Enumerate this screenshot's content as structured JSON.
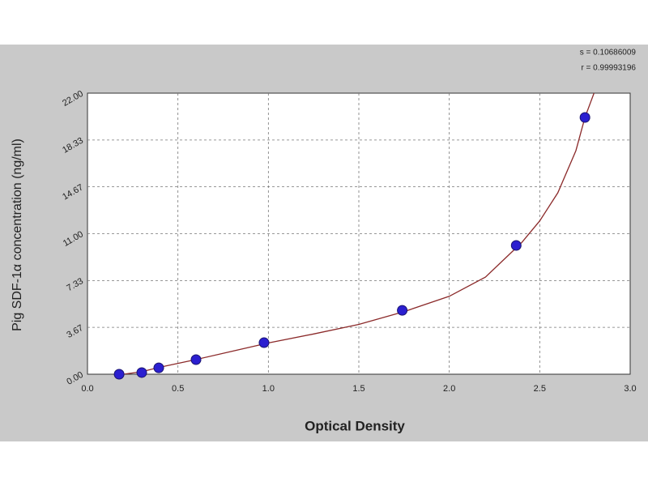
{
  "chart_data": {
    "type": "scatter",
    "x_label": "Optical Density",
    "y_label": "Pig SDF-1α concentration (ng/ml)",
    "annotations": [
      "s = 0.10686009",
      "r = 0.99993196"
    ],
    "xlim": [
      0,
      3
    ],
    "ylim": [
      0,
      22
    ],
    "xticks": [
      {
        "value": 0,
        "label": "0.0"
      },
      0.5,
      {
        "value": 1,
        "label": "1.0"
      },
      1.5,
      {
        "value": 2,
        "label": "2.0"
      },
      2.5,
      {
        "value": 3,
        "label": "3.0"
      }
    ],
    "yticks": [
      {
        "value": 0,
        "label": "0.00"
      },
      3.67,
      7.33,
      {
        "value": 11,
        "label": "11.00"
      },
      14.67,
      18.33,
      {
        "value": 22,
        "label": "22.00"
      }
    ],
    "grid": true,
    "series": [
      {
        "color": "#2b1fd0",
        "marker": "circle",
        "x": [
          0.175,
          0.3,
          0.394,
          0.6,
          0.976,
          1.74,
          2.37,
          2.75
        ],
        "values": [
          0.0,
          0.13,
          0.5,
          1.14,
          2.47,
          5.0,
          10.08,
          20.1
        ]
      },
      {
        "color": "#8b2a2a",
        "marker": "none",
        "x": [
          0.15,
          0.3,
          0.4,
          0.6,
          0.8,
          1.0,
          1.25,
          1.5,
          1.75,
          2.0,
          2.2,
          2.4,
          2.5,
          2.6,
          2.7,
          2.75,
          2.8
        ],
        "values": [
          -0.1,
          0.2,
          0.55,
          1.15,
          1.8,
          2.45,
          3.15,
          3.9,
          4.9,
          6.1,
          7.6,
          10.3,
          12.0,
          14.2,
          17.5,
          20.1,
          22.0
        ]
      }
    ]
  }
}
